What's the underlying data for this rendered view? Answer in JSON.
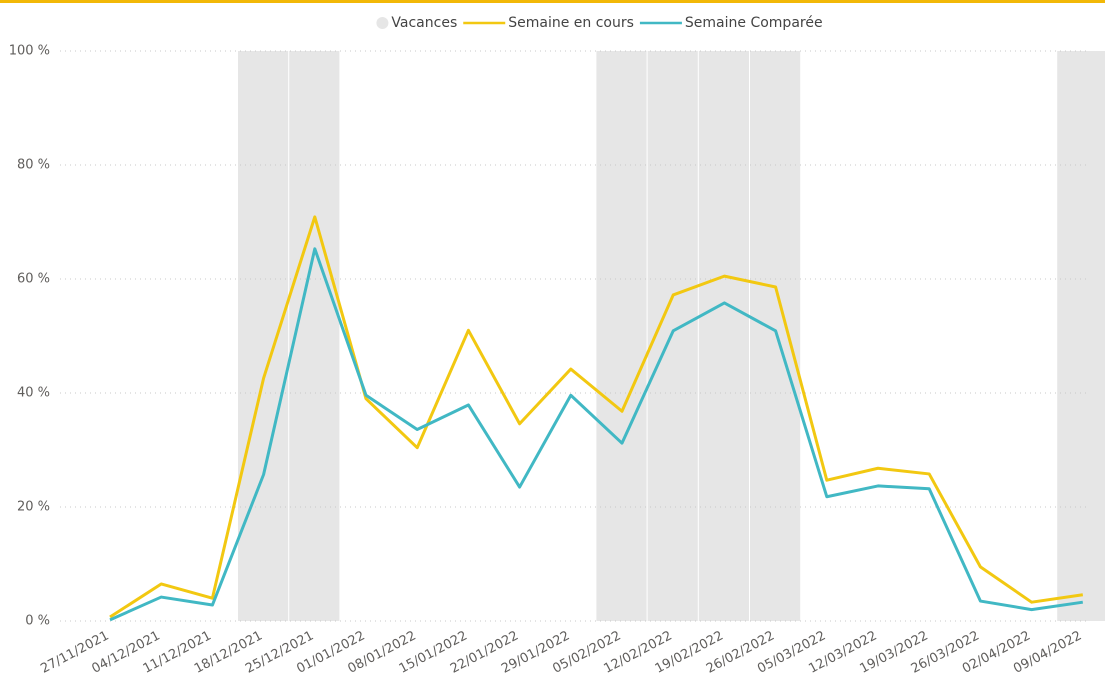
{
  "chart_data": {
    "type": "line",
    "categories": [
      "27/11/2021",
      "04/12/2021",
      "11/12/2021",
      "18/12/2021",
      "25/12/2021",
      "01/01/2022",
      "08/01/2022",
      "15/01/2022",
      "22/01/2022",
      "29/01/2022",
      "05/02/2022",
      "12/02/2022",
      "19/02/2022",
      "26/02/2022",
      "05/03/2022",
      "12/03/2022",
      "19/03/2022",
      "26/03/2022",
      "02/04/2022",
      "09/04/2022"
    ],
    "series": [
      {
        "name": "Vacances",
        "type": "bar",
        "color": "#e6e6e6",
        "values": [
          null,
          null,
          null,
          100,
          100,
          null,
          null,
          null,
          null,
          null,
          100,
          100,
          100,
          100,
          null,
          null,
          null,
          null,
          null,
          100
        ]
      },
      {
        "name": "Semaine en cours",
        "type": "line",
        "color": "#f2c811",
        "values": [
          0.7,
          6.5,
          4,
          42.6,
          70.9,
          39,
          30.4,
          51,
          34.6,
          44.2,
          36.8,
          57.2,
          60.5,
          58.6,
          24.7,
          26.8,
          25.8,
          9.5,
          3.3,
          4.6
        ]
      },
      {
        "name": "Semaine Comparée",
        "type": "line",
        "color": "#41b8c4",
        "values": [
          0.2,
          4.2,
          2.8,
          25.7,
          65.3,
          39.6,
          33.6,
          37.9,
          23.5,
          39.6,
          31.2,
          50.9,
          55.8,
          50.9,
          21.8,
          23.7,
          23.2,
          3.5,
          2,
          3.3
        ]
      }
    ],
    "ylim": [
      0,
      100
    ],
    "yticks": [
      {
        "value": 0,
        "label": "0 %"
      },
      {
        "value": 20,
        "label": "20 %"
      },
      {
        "value": 40,
        "label": "40 %"
      },
      {
        "value": 60,
        "label": "60 %"
      },
      {
        "value": 80,
        "label": "80 %"
      },
      {
        "value": 100,
        "label": "100 %"
      }
    ],
    "grid": true,
    "legend": "top"
  }
}
